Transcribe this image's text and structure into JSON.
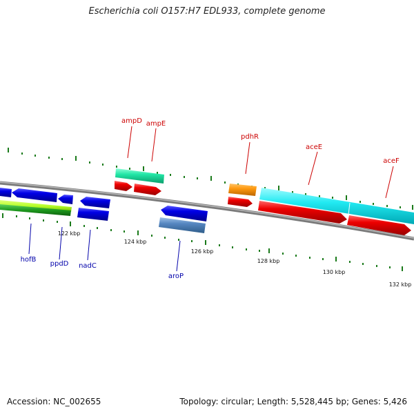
{
  "title": "Escherichia coli O157:H7 EDL933, complete genome",
  "footer": {
    "accession": "Accession: NC_002655",
    "summary": "Topology: circular; Length: 5,528,445 bp; Genes: 5,426"
  },
  "colors": {
    "backbone": "#8c8c8c",
    "tick": "#1a7a1a",
    "label_forward": "#cc0000",
    "label_reverse": "#0000aa"
  },
  "axis_labels": [
    "122 kbp",
    "124 kbp",
    "126 kbp",
    "128 kbp",
    "130 kbp",
    "132 kbp"
  ],
  "genes": [
    {
      "name": "hofB",
      "strand": "reverse",
      "color": "#0000dd"
    },
    {
      "name": "ppdD",
      "strand": "reverse",
      "color": "#0000dd"
    },
    {
      "name": "nadC",
      "strand": "reverse",
      "color": "#0000dd"
    },
    {
      "name": "ampD",
      "strand": "forward",
      "color": "#dd0000"
    },
    {
      "name": "ampE",
      "strand": "forward",
      "color": "#dd0000"
    },
    {
      "name": "aroP",
      "strand": "reverse",
      "color": "#0000dd"
    },
    {
      "name": "pdhR",
      "strand": "forward",
      "color": "#dd0000"
    },
    {
      "name": "aceE",
      "strand": "forward",
      "color": "#dd0000"
    },
    {
      "name": "aceF",
      "strand": "forward",
      "color": "#dd0000"
    }
  ]
}
